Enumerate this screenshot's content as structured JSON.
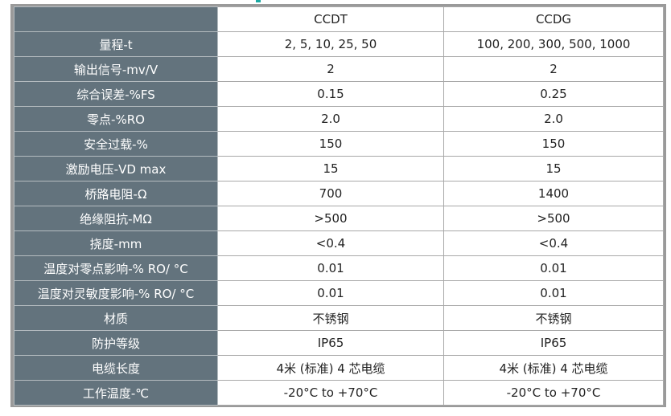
{
  "accent_color": "#1aa9a3",
  "label_bg_color": "#63737d",
  "header": {
    "label": "",
    "col1": "CCDT",
    "col2": "CCDG"
  },
  "rows": [
    {
      "label": "量程-t",
      "ccdt": "2, 5, 10, 25, 50",
      "ccdg": "100, 200, 300, 500, 1000"
    },
    {
      "label": "输出信号-mv/V",
      "ccdt": "2",
      "ccdg": "2"
    },
    {
      "label": "综合误差-%FS",
      "ccdt": "0.15",
      "ccdg": "0.25"
    },
    {
      "label": "零点-%RO",
      "ccdt": "2.0",
      "ccdg": "2.0"
    },
    {
      "label": "安全过载-%",
      "ccdt": "150",
      "ccdg": "150"
    },
    {
      "label": "激励电压-VD max",
      "ccdt": "15",
      "ccdg": "15"
    },
    {
      "label": "桥路电阻-Ω",
      "ccdt": "700",
      "ccdg": "1400"
    },
    {
      "label": "绝缘阻抗-MΩ",
      "ccdt": ">500",
      "ccdg": ">500"
    },
    {
      "label": "挠度-mm",
      "ccdt": "<0.4",
      "ccdg": "<0.4"
    },
    {
      "label": "温度对零点影响-% RO/ °C",
      "ccdt": "0.01",
      "ccdg": "0.01"
    },
    {
      "label": "温度对灵敏度影响-% RO/ °C",
      "ccdt": "0.01",
      "ccdg": "0.01"
    },
    {
      "label": "材质",
      "ccdt": "不锈钢",
      "ccdg": "不锈钢"
    },
    {
      "label": "防护等级",
      "ccdt": "IP65",
      "ccdg": "IP65"
    },
    {
      "label": "电缆长度",
      "ccdt": "4米 (标准) 4 芯电缆",
      "ccdg": "4米 (标准) 4 芯电缆"
    },
    {
      "label": "工作温度-℃",
      "ccdt": "-20°C to +70°C",
      "ccdg": "-20°C to +70°C"
    }
  ]
}
